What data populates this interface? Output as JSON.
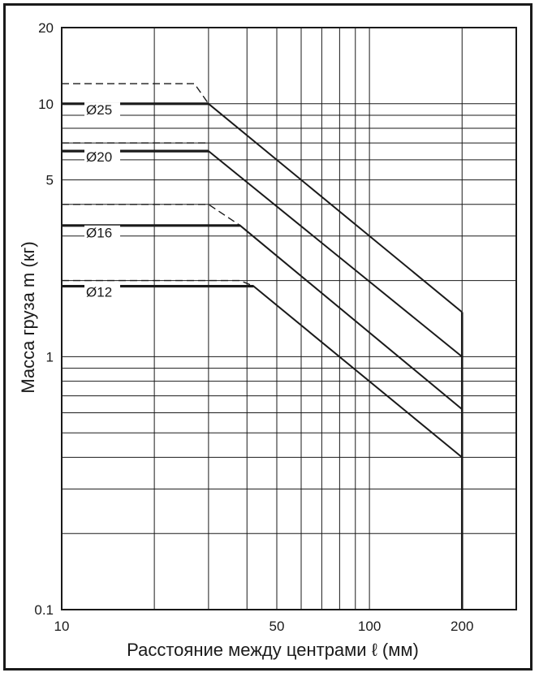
{
  "chart_data": {
    "type": "line",
    "xlabel": "Расстояние между центрами ℓ (мм)",
    "ylabel": "Масса груза m (кг)",
    "x_scale": "log",
    "y_scale": "log",
    "xlim": [
      10,
      300
    ],
    "ylim": [
      0.1,
      20
    ],
    "x_ticks": [
      {
        "value": 10,
        "label": "10"
      },
      {
        "value": 50,
        "label": "50"
      },
      {
        "value": 100,
        "label": "100"
      },
      {
        "value": 200,
        "label": "200"
      }
    ],
    "y_ticks": [
      {
        "value": 0.1,
        "label": "0.1"
      },
      {
        "value": 1,
        "label": "1"
      },
      {
        "value": 5,
        "label": "5"
      },
      {
        "value": 10,
        "label": "10"
      },
      {
        "value": 20,
        "label": "20"
      }
    ],
    "grid": true,
    "series": [
      {
        "name": "Ø25",
        "label_at": [
          12,
          9.2
        ],
        "solid": [
          [
            10,
            10
          ],
          [
            30,
            10
          ],
          [
            200,
            1.5
          ]
        ],
        "dashed": [
          [
            10,
            12
          ],
          [
            27,
            12
          ],
          [
            30,
            10
          ]
        ]
      },
      {
        "name": "Ø20",
        "label_at": [
          12,
          6.0
        ],
        "solid": [
          [
            10,
            6.5
          ],
          [
            30,
            6.5
          ],
          [
            200,
            1.0
          ]
        ],
        "dashed": [
          [
            10,
            7.0
          ],
          [
            30,
            7.0
          ]
        ]
      },
      {
        "name": "Ø16",
        "label_at": [
          12,
          3.0
        ],
        "solid": [
          [
            10,
            3.3
          ],
          [
            38,
            3.3
          ],
          [
            200,
            0.62
          ]
        ],
        "dashed": [
          [
            10,
            4.0
          ],
          [
            30,
            4.0
          ],
          [
            38,
            3.3
          ]
        ]
      },
      {
        "name": "Ø12",
        "label_at": [
          12,
          1.75
        ],
        "solid": [
          [
            10,
            1.9
          ],
          [
            42,
            1.9
          ],
          [
            200,
            0.4
          ]
        ],
        "dashed": [
          [
            10,
            2.0
          ],
          [
            38,
            2.0
          ],
          [
            42,
            1.9
          ]
        ]
      }
    ],
    "limit": {
      "x": 200,
      "y_from": 0.1,
      "y_to": 1.5
    }
  }
}
